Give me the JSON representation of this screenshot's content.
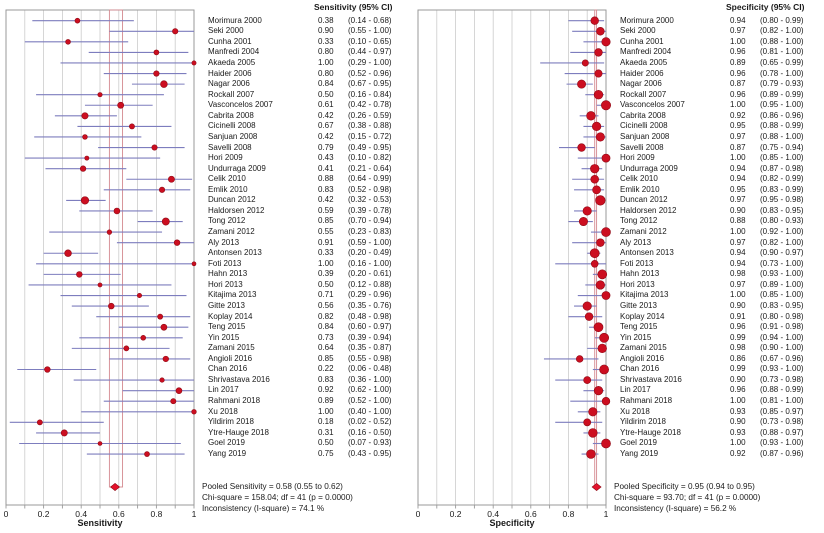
{
  "colors": {
    "ci_line": "#7d7dbe",
    "point_fill": "#cc0e20",
    "point_edge": "#8f0a16",
    "pooled_box": "#d4898f",
    "diamond_fill": "#e4122b",
    "gridline": "#cccccc",
    "frame": "#999999",
    "text": "#1a1a1a"
  },
  "chart_data": [
    {
      "type": "forest",
      "panel": "sensitivity",
      "header": "Sensitivity (95% CI)",
      "xlabel": "Sensitivity",
      "xlim": [
        0,
        1
      ],
      "grid_step": 0.1,
      "tick_values": [
        0,
        0.2,
        0.4,
        0.6,
        0.8,
        1
      ],
      "tick_labels": [
        "0",
        "0.2",
        "0.4",
        "0.6",
        "0.8",
        "1"
      ],
      "pooled": {
        "est": 0.58,
        "lo": 0.55,
        "hi": 0.62
      },
      "footer_lines": [
        "Pooled Sensitivity = 0.58 (0.55 to 0.62)",
        "Chi-square = 158.04; df = 41 (p = 0.0000)",
        "Inconsistency (I-square) = 74.1 %"
      ],
      "studies": [
        {
          "name": "Morimura 2000",
          "est": 0.38,
          "lo": 0.14,
          "hi": 0.68
        },
        {
          "name": "Seki 2000",
          "est": 0.9,
          "lo": 0.55,
          "hi": 1.0
        },
        {
          "name": "Cunha 2001",
          "est": 0.33,
          "lo": 0.1,
          "hi": 0.65
        },
        {
          "name": "Manfredi 2004",
          "est": 0.8,
          "lo": 0.44,
          "hi": 0.97
        },
        {
          "name": "Akaeda 2005",
          "est": 1.0,
          "lo": 0.29,
          "hi": 1.0
        },
        {
          "name": "Haider 2006",
          "est": 0.8,
          "lo": 0.52,
          "hi": 0.96
        },
        {
          "name": "Nagar 2006",
          "est": 0.84,
          "lo": 0.67,
          "hi": 0.95
        },
        {
          "name": "Rockall 2007",
          "est": 0.5,
          "lo": 0.16,
          "hi": 0.84
        },
        {
          "name": "Vasconcelos 2007",
          "est": 0.61,
          "lo": 0.42,
          "hi": 0.78
        },
        {
          "name": "Cabrita 2008",
          "est": 0.42,
          "lo": 0.26,
          "hi": 0.59
        },
        {
          "name": "Cicinelli 2008",
          "est": 0.67,
          "lo": 0.38,
          "hi": 0.88
        },
        {
          "name": "Sanjuan 2008",
          "est": 0.42,
          "lo": 0.15,
          "hi": 0.72
        },
        {
          "name": "Savelli 2008",
          "est": 0.79,
          "lo": 0.49,
          "hi": 0.95
        },
        {
          "name": "Hori 2009",
          "est": 0.43,
          "lo": 0.1,
          "hi": 0.82
        },
        {
          "name": "Undurraga 2009",
          "est": 0.41,
          "lo": 0.21,
          "hi": 0.64
        },
        {
          "name": "Celik 2010",
          "est": 0.88,
          "lo": 0.64,
          "hi": 0.99
        },
        {
          "name": "Emlik 2010",
          "est": 0.83,
          "lo": 0.52,
          "hi": 0.98
        },
        {
          "name": "Duncan 2012",
          "est": 0.42,
          "lo": 0.32,
          "hi": 0.53
        },
        {
          "name": "Haldorsen 2012",
          "est": 0.59,
          "lo": 0.39,
          "hi": 0.78
        },
        {
          "name": "Tong 2012",
          "est": 0.85,
          "lo": 0.7,
          "hi": 0.94
        },
        {
          "name": "Zamani 2012",
          "est": 0.55,
          "lo": 0.23,
          "hi": 0.83
        },
        {
          "name": "Aly 2013",
          "est": 0.91,
          "lo": 0.59,
          "hi": 1.0
        },
        {
          "name": "Antonsen 2013",
          "est": 0.33,
          "lo": 0.2,
          "hi": 0.49
        },
        {
          "name": "Foti 2013",
          "est": 1.0,
          "lo": 0.16,
          "hi": 1.0
        },
        {
          "name": "Hahn 2013",
          "est": 0.39,
          "lo": 0.2,
          "hi": 0.61
        },
        {
          "name": "Hori 2013",
          "est": 0.5,
          "lo": 0.12,
          "hi": 0.88
        },
        {
          "name": "Kitajima 2013",
          "est": 0.71,
          "lo": 0.29,
          "hi": 0.96
        },
        {
          "name": "Gitte 2013",
          "est": 0.56,
          "lo": 0.35,
          "hi": 0.76
        },
        {
          "name": "Koplay 2014",
          "est": 0.82,
          "lo": 0.48,
          "hi": 0.98
        },
        {
          "name": "Teng 2015",
          "est": 0.84,
          "lo": 0.6,
          "hi": 0.97
        },
        {
          "name": "Yin 2015",
          "est": 0.73,
          "lo": 0.39,
          "hi": 0.94
        },
        {
          "name": "Zamani 2015",
          "est": 0.64,
          "lo": 0.35,
          "hi": 0.87
        },
        {
          "name": "Angioli 2016",
          "est": 0.85,
          "lo": 0.55,
          "hi": 0.98
        },
        {
          "name": "Chan 2016",
          "est": 0.22,
          "lo": 0.06,
          "hi": 0.48
        },
        {
          "name": "Shrivastava 2016",
          "est": 0.83,
          "lo": 0.36,
          "hi": 1.0
        },
        {
          "name": "Lin 2017",
          "est": 0.92,
          "lo": 0.62,
          "hi": 1.0
        },
        {
          "name": "Rahmani 2018",
          "est": 0.89,
          "lo": 0.52,
          "hi": 1.0
        },
        {
          "name": "Xu 2018",
          "est": 1.0,
          "lo": 0.4,
          "hi": 1.0
        },
        {
          "name": "Yildirim 2018",
          "est": 0.18,
          "lo": 0.02,
          "hi": 0.52
        },
        {
          "name": "Ytre-Hauge 2018",
          "est": 0.31,
          "lo": 0.16,
          "hi": 0.5
        },
        {
          "name": "Goel 2019",
          "est": 0.5,
          "lo": 0.07,
          "hi": 0.93
        },
        {
          "name": "Yang 2019",
          "est": 0.75,
          "lo": 0.43,
          "hi": 0.95
        }
      ]
    },
    {
      "type": "forest",
      "panel": "specificity",
      "header": "Specificity (95% CI)",
      "xlabel": "Specificity",
      "xlim": [
        0,
        1
      ],
      "grid_step": 0.1,
      "tick_values": [
        0,
        0.2,
        0.4,
        0.6,
        0.8,
        1
      ],
      "tick_labels": [
        "0",
        "0.2",
        "0.4",
        "0.6",
        "0.8",
        "1"
      ],
      "pooled": {
        "est": 0.95,
        "lo": 0.94,
        "hi": 0.95
      },
      "footer_lines": [
        "Pooled Specificity = 0.95 (0.94 to 0.95)",
        "Chi-square = 93.70; df = 41 (p = 0.0000)",
        "Inconsistency (I-square) = 56.2 %"
      ],
      "studies": [
        {
          "name": "Morimura 2000",
          "est": 0.94,
          "lo": 0.8,
          "hi": 0.99
        },
        {
          "name": "Seki 2000",
          "est": 0.97,
          "lo": 0.82,
          "hi": 1.0
        },
        {
          "name": "Cunha 2001",
          "est": 1.0,
          "lo": 0.88,
          "hi": 1.0
        },
        {
          "name": "Manfredi 2004",
          "est": 0.96,
          "lo": 0.81,
          "hi": 1.0
        },
        {
          "name": "Akaeda 2005",
          "est": 0.89,
          "lo": 0.65,
          "hi": 0.99
        },
        {
          "name": "Haider 2006",
          "est": 0.96,
          "lo": 0.78,
          "hi": 1.0
        },
        {
          "name": "Nagar 2006",
          "est": 0.87,
          "lo": 0.79,
          "hi": 0.93
        },
        {
          "name": "Rockall 2007",
          "est": 0.96,
          "lo": 0.89,
          "hi": 0.99
        },
        {
          "name": "Vasconcelos 2007",
          "est": 1.0,
          "lo": 0.95,
          "hi": 1.0
        },
        {
          "name": "Cabrita 2008",
          "est": 0.92,
          "lo": 0.86,
          "hi": 0.96
        },
        {
          "name": "Cicinelli 2008",
          "est": 0.95,
          "lo": 0.88,
          "hi": 0.99
        },
        {
          "name": "Sanjuan 2008",
          "est": 0.97,
          "lo": 0.88,
          "hi": 1.0
        },
        {
          "name": "Savelli 2008",
          "est": 0.87,
          "lo": 0.75,
          "hi": 0.94
        },
        {
          "name": "Hori 2009",
          "est": 1.0,
          "lo": 0.85,
          "hi": 1.0
        },
        {
          "name": "Undurraga 2009",
          "est": 0.94,
          "lo": 0.87,
          "hi": 0.98
        },
        {
          "name": "Celik 2010",
          "est": 0.94,
          "lo": 0.82,
          "hi": 0.99
        },
        {
          "name": "Emlik 2010",
          "est": 0.95,
          "lo": 0.83,
          "hi": 0.99
        },
        {
          "name": "Duncan 2012",
          "est": 0.97,
          "lo": 0.95,
          "hi": 0.98
        },
        {
          "name": "Haldorsen 2012",
          "est": 0.9,
          "lo": 0.83,
          "hi": 0.95
        },
        {
          "name": "Tong 2012",
          "est": 0.88,
          "lo": 0.8,
          "hi": 0.93
        },
        {
          "name": "Zamani 2012",
          "est": 1.0,
          "lo": 0.92,
          "hi": 1.0
        },
        {
          "name": "Aly 2013",
          "est": 0.97,
          "lo": 0.82,
          "hi": 1.0
        },
        {
          "name": "Antonsen 2013",
          "est": 0.94,
          "lo": 0.9,
          "hi": 0.97
        },
        {
          "name": "Foti 2013",
          "est": 0.94,
          "lo": 0.73,
          "hi": 1.0
        },
        {
          "name": "Hahn 2013",
          "est": 0.98,
          "lo": 0.93,
          "hi": 1.0
        },
        {
          "name": "Hori 2013",
          "est": 0.97,
          "lo": 0.89,
          "hi": 1.0
        },
        {
          "name": "Kitajima 2013",
          "est": 1.0,
          "lo": 0.85,
          "hi": 1.0
        },
        {
          "name": "Gitte 2013",
          "est": 0.9,
          "lo": 0.83,
          "hi": 0.95
        },
        {
          "name": "Koplay 2014",
          "est": 0.91,
          "lo": 0.8,
          "hi": 0.98
        },
        {
          "name": "Teng 2015",
          "est": 0.96,
          "lo": 0.91,
          "hi": 0.98
        },
        {
          "name": "Yin 2015",
          "est": 0.99,
          "lo": 0.94,
          "hi": 1.0
        },
        {
          "name": "Zamani 2015",
          "est": 0.98,
          "lo": 0.9,
          "hi": 1.0
        },
        {
          "name": "Angioli 2016",
          "est": 0.86,
          "lo": 0.67,
          "hi": 0.96
        },
        {
          "name": "Chan 2016",
          "est": 0.99,
          "lo": 0.93,
          "hi": 1.0
        },
        {
          "name": "Shrivastava 2016",
          "est": 0.9,
          "lo": 0.73,
          "hi": 0.98
        },
        {
          "name": "Lin 2017",
          "est": 0.96,
          "lo": 0.88,
          "hi": 0.99
        },
        {
          "name": "Rahmani 2018",
          "est": 1.0,
          "lo": 0.81,
          "hi": 1.0
        },
        {
          "name": "Xu 2018",
          "est": 0.93,
          "lo": 0.85,
          "hi": 0.97
        },
        {
          "name": "Yildirim 2018",
          "est": 0.9,
          "lo": 0.73,
          "hi": 0.98
        },
        {
          "name": "Ytre-Hauge 2018",
          "est": 0.93,
          "lo": 0.88,
          "hi": 0.97
        },
        {
          "name": "Goel 2019",
          "est": 1.0,
          "lo": 0.93,
          "hi": 1.0
        },
        {
          "name": "Yang 2019",
          "est": 0.92,
          "lo": 0.87,
          "hi": 0.96
        }
      ]
    }
  ]
}
